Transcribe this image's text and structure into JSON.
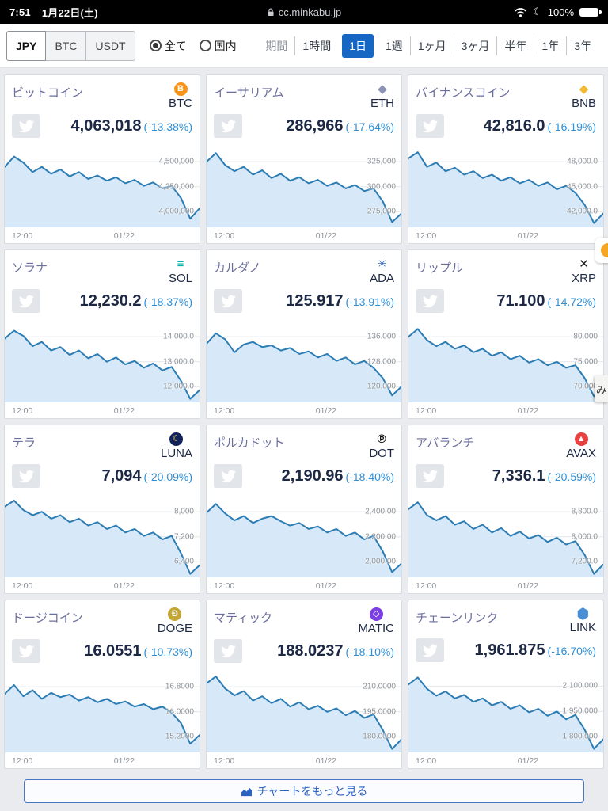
{
  "status_bar": {
    "time": "7:51",
    "date": "1月22日(土)",
    "url": "cc.minkabu.jp",
    "battery": "100%"
  },
  "toolbar": {
    "currencies": [
      {
        "key": "jpy",
        "label": "JPY",
        "selected": true
      },
      {
        "key": "btc",
        "label": "BTC",
        "selected": false
      },
      {
        "key": "usdt",
        "label": "USDT",
        "selected": false
      }
    ],
    "scopes": [
      {
        "key": "all",
        "label": "全て",
        "selected": true
      },
      {
        "key": "domestic",
        "label": "国内",
        "selected": false
      }
    ],
    "period_label": "期間",
    "periods": [
      {
        "key": "1h",
        "label": "1時間",
        "selected": false
      },
      {
        "key": "1d",
        "label": "1日",
        "selected": true
      },
      {
        "key": "1w",
        "label": "1週",
        "selected": false
      },
      {
        "key": "1mo",
        "label": "1ヶ月",
        "selected": false
      },
      {
        "key": "3mo",
        "label": "3ヶ月",
        "selected": false
      },
      {
        "key": "6mo",
        "label": "半年",
        "selected": false
      },
      {
        "key": "1y",
        "label": "1年",
        "selected": false
      },
      {
        "key": "3y",
        "label": "3年",
        "selected": false
      }
    ]
  },
  "colors": {
    "accent_blue": "#1567c3",
    "change_blue": "#2e8fd6",
    "chart_line": "#2c7cb4",
    "chart_fill": "#d7e9f8"
  },
  "cards": [
    {
      "key": "btc",
      "name": "ビットコイン",
      "symbol": "BTC",
      "price": "4,063,018",
      "change": "(-13.38%)",
      "icon": {
        "name": "btc-icon",
        "glyph": "B",
        "bg": "#f7931a",
        "color": "#ffffff",
        "shape": "circle"
      },
      "chart": {
        "type": "area",
        "y_labels": [
          "4,500,000",
          "4,250,000",
          "4,000,000"
        ],
        "x_labels": [
          "12:00",
          "01/22"
        ],
        "points": [
          0.3,
          0.18,
          0.25,
          0.36,
          0.3,
          0.38,
          0.33,
          0.41,
          0.36,
          0.44,
          0.4,
          0.46,
          0.42,
          0.49,
          0.45,
          0.52,
          0.48,
          0.55,
          0.52,
          0.66,
          0.9,
          0.78
        ]
      }
    },
    {
      "key": "eth",
      "name": "イーサリアム",
      "symbol": "ETH",
      "price": "286,966",
      "change": "(-17.64%)",
      "icon": {
        "name": "eth-icon",
        "glyph": "◆",
        "bg": "",
        "color": "#8a93b5",
        "shape": "plain"
      },
      "chart": {
        "type": "area",
        "y_labels": [
          "325,000",
          "300,000",
          "275,000"
        ],
        "x_labels": [
          "12:00",
          "01/22"
        ],
        "points": [
          0.24,
          0.14,
          0.28,
          0.35,
          0.3,
          0.39,
          0.34,
          0.43,
          0.38,
          0.46,
          0.42,
          0.49,
          0.45,
          0.52,
          0.48,
          0.55,
          0.51,
          0.58,
          0.55,
          0.7,
          0.94,
          0.84
        ]
      }
    },
    {
      "key": "bnb",
      "name": "バイナンスコイン",
      "symbol": "BNB",
      "price": "42,816.0",
      "change": "(-16.19%)",
      "icon": {
        "name": "bnb-icon",
        "glyph": "◆",
        "bg": "",
        "color": "#f3ba2f",
        "shape": "plain"
      },
      "chart": {
        "type": "area",
        "y_labels": [
          "48,000.0",
          "45,000.0",
          "42,000.0"
        ],
        "x_labels": [
          "12:00",
          "01/22"
        ],
        "points": [
          0.2,
          0.13,
          0.3,
          0.25,
          0.35,
          0.31,
          0.39,
          0.35,
          0.43,
          0.39,
          0.46,
          0.42,
          0.49,
          0.45,
          0.52,
          0.48,
          0.56,
          0.52,
          0.6,
          0.74,
          0.95,
          0.84
        ]
      }
    },
    {
      "key": "sol",
      "name": "ソラナ",
      "symbol": "SOL",
      "price": "12,230.2",
      "change": "(-18.37%)",
      "icon": {
        "name": "sol-icon",
        "glyph": "≡",
        "bg": "",
        "color": "#00b5ad",
        "shape": "plain"
      },
      "chart": {
        "type": "area",
        "y_labels": [
          "14,000.0",
          "13,000.0",
          "12,000.0"
        ],
        "x_labels": [
          "12:00",
          "01/22"
        ],
        "points": [
          0.26,
          0.17,
          0.23,
          0.35,
          0.3,
          0.4,
          0.36,
          0.45,
          0.4,
          0.49,
          0.44,
          0.53,
          0.48,
          0.56,
          0.52,
          0.6,
          0.55,
          0.63,
          0.59,
          0.75,
          0.96,
          0.86
        ]
      }
    },
    {
      "key": "ada",
      "name": "カルダノ",
      "symbol": "ADA",
      "price": "125.917",
      "change": "(-13.91%)",
      "icon": {
        "name": "ada-icon",
        "glyph": "✳",
        "bg": "",
        "color": "#3564b0",
        "shape": "plain"
      },
      "chart": {
        "type": "area",
        "y_labels": [
          "136.000",
          "128.000",
          "120.000"
        ],
        "x_labels": [
          "12:00",
          "01/22"
        ],
        "points": [
          0.32,
          0.2,
          0.27,
          0.42,
          0.33,
          0.3,
          0.36,
          0.34,
          0.4,
          0.37,
          0.44,
          0.41,
          0.48,
          0.44,
          0.52,
          0.48,
          0.56,
          0.52,
          0.6,
          0.72,
          0.92,
          0.82
        ]
      }
    },
    {
      "key": "xrp",
      "name": "リップル",
      "symbol": "XRP",
      "price": "71.100",
      "change": "(-14.72%)",
      "icon": {
        "name": "xrp-icon",
        "glyph": "✕",
        "bg": "",
        "color": "#16181c",
        "shape": "plain"
      },
      "chart": {
        "type": "area",
        "y_labels": [
          "80.000",
          "75.000",
          "70.000"
        ],
        "x_labels": [
          "12:00",
          "01/22"
        ],
        "points": [
          0.24,
          0.15,
          0.28,
          0.35,
          0.3,
          0.38,
          0.34,
          0.42,
          0.38,
          0.46,
          0.42,
          0.5,
          0.46,
          0.54,
          0.5,
          0.57,
          0.53,
          0.6,
          0.57,
          0.72,
          0.93,
          0.83
        ]
      }
    },
    {
      "key": "luna",
      "name": "テラ",
      "symbol": "LUNA",
      "price": "7,094",
      "change": "(-20.09%)",
      "icon": {
        "name": "luna-icon",
        "glyph": "☾",
        "bg": "#11225b",
        "color": "#ffd83d",
        "shape": "circle"
      },
      "chart": {
        "type": "area",
        "y_labels": [
          "8,000",
          "7,200",
          "6,400"
        ],
        "x_labels": [
          "12:00",
          "01/22"
        ],
        "points": [
          0.18,
          0.11,
          0.22,
          0.28,
          0.24,
          0.32,
          0.28,
          0.36,
          0.32,
          0.4,
          0.36,
          0.44,
          0.4,
          0.48,
          0.44,
          0.52,
          0.48,
          0.56,
          0.52,
          0.72,
          0.96,
          0.86
        ]
      }
    },
    {
      "key": "dot",
      "name": "ポルカドット",
      "symbol": "DOT",
      "price": "2,190.96",
      "change": "(-18.40%)",
      "icon": {
        "name": "dot-icon",
        "glyph": "℗",
        "bg": "",
        "color": "#000000",
        "shape": "plain"
      },
      "chart": {
        "type": "area",
        "y_labels": [
          "2,400.00",
          "2,200.00",
          "2,000.00"
        ],
        "x_labels": [
          "12:00",
          "01/22"
        ],
        "points": [
          0.25,
          0.15,
          0.26,
          0.34,
          0.29,
          0.37,
          0.32,
          0.29,
          0.35,
          0.4,
          0.37,
          0.44,
          0.41,
          0.48,
          0.44,
          0.52,
          0.48,
          0.56,
          0.52,
          0.7,
          0.94,
          0.84
        ]
      }
    },
    {
      "key": "avax",
      "name": "アバランチ",
      "symbol": "AVAX",
      "price": "7,336.1",
      "change": "(-20.59%)",
      "icon": {
        "name": "avax-icon",
        "glyph": "▲",
        "bg": "#e84142",
        "color": "#ffffff",
        "shape": "circle"
      },
      "chart": {
        "type": "area",
        "y_labels": [
          "8,800.0",
          "8,000.0",
          "7,200.0"
        ],
        "x_labels": [
          "12:00",
          "01/22"
        ],
        "points": [
          0.21,
          0.13,
          0.28,
          0.34,
          0.29,
          0.39,
          0.35,
          0.44,
          0.39,
          0.48,
          0.43,
          0.52,
          0.47,
          0.55,
          0.51,
          0.59,
          0.54,
          0.62,
          0.58,
          0.74,
          0.96,
          0.85
        ]
      }
    },
    {
      "key": "doge",
      "name": "ドージコイン",
      "symbol": "DOGE",
      "price": "16.0551",
      "change": "(-10.73%)",
      "icon": {
        "name": "doge-icon",
        "glyph": "Ð",
        "bg": "#c3a634",
        "color": "#ffffff",
        "shape": "circle"
      },
      "chart": {
        "type": "area",
        "y_labels": [
          "16.8000",
          "16.0000",
          "15.2000"
        ],
        "x_labels": [
          "12:00",
          "01/22"
        ],
        "points": [
          0.32,
          0.22,
          0.35,
          0.28,
          0.38,
          0.31,
          0.36,
          0.33,
          0.4,
          0.36,
          0.42,
          0.38,
          0.44,
          0.41,
          0.47,
          0.44,
          0.5,
          0.47,
          0.54,
          0.66,
          0.9,
          0.8
        ]
      }
    },
    {
      "key": "matic",
      "name": "マティック",
      "symbol": "MATIC",
      "price": "188.0237",
      "change": "(-18.10%)",
      "icon": {
        "name": "matic-icon",
        "glyph": "◇",
        "bg": "#7b3fe4",
        "color": "#ffffff",
        "shape": "circle"
      },
      "chart": {
        "type": "area",
        "y_labels": [
          "210.0000",
          "195.0000",
          "180.0000"
        ],
        "x_labels": [
          "12:00",
          "01/22"
        ],
        "points": [
          0.2,
          0.12,
          0.26,
          0.34,
          0.29,
          0.4,
          0.35,
          0.43,
          0.38,
          0.47,
          0.42,
          0.5,
          0.46,
          0.53,
          0.49,
          0.57,
          0.52,
          0.6,
          0.56,
          0.74,
          0.96,
          0.85
        ]
      }
    },
    {
      "key": "link",
      "name": "チェーンリンク",
      "symbol": "LINK",
      "price": "1,961.875",
      "change": "(-16.70%)",
      "icon": {
        "name": "link-icon",
        "glyph": "",
        "bg": "#4a8fd4",
        "color": "#ffffff",
        "shape": "hex"
      },
      "chart": {
        "type": "area",
        "y_labels": [
          "2,100.000",
          "1,950.000",
          "1,800.000"
        ],
        "x_labels": [
          "12:00",
          "01/22"
        ],
        "points": [
          0.22,
          0.14,
          0.27,
          0.35,
          0.3,
          0.38,
          0.34,
          0.42,
          0.38,
          0.46,
          0.42,
          0.5,
          0.46,
          0.54,
          0.5,
          0.58,
          0.53,
          0.62,
          0.57,
          0.74,
          0.96,
          0.85
        ]
      }
    }
  ],
  "footer": {
    "more_button": "チャートをもっと見る"
  },
  "edge": {
    "tab_text": "み"
  }
}
